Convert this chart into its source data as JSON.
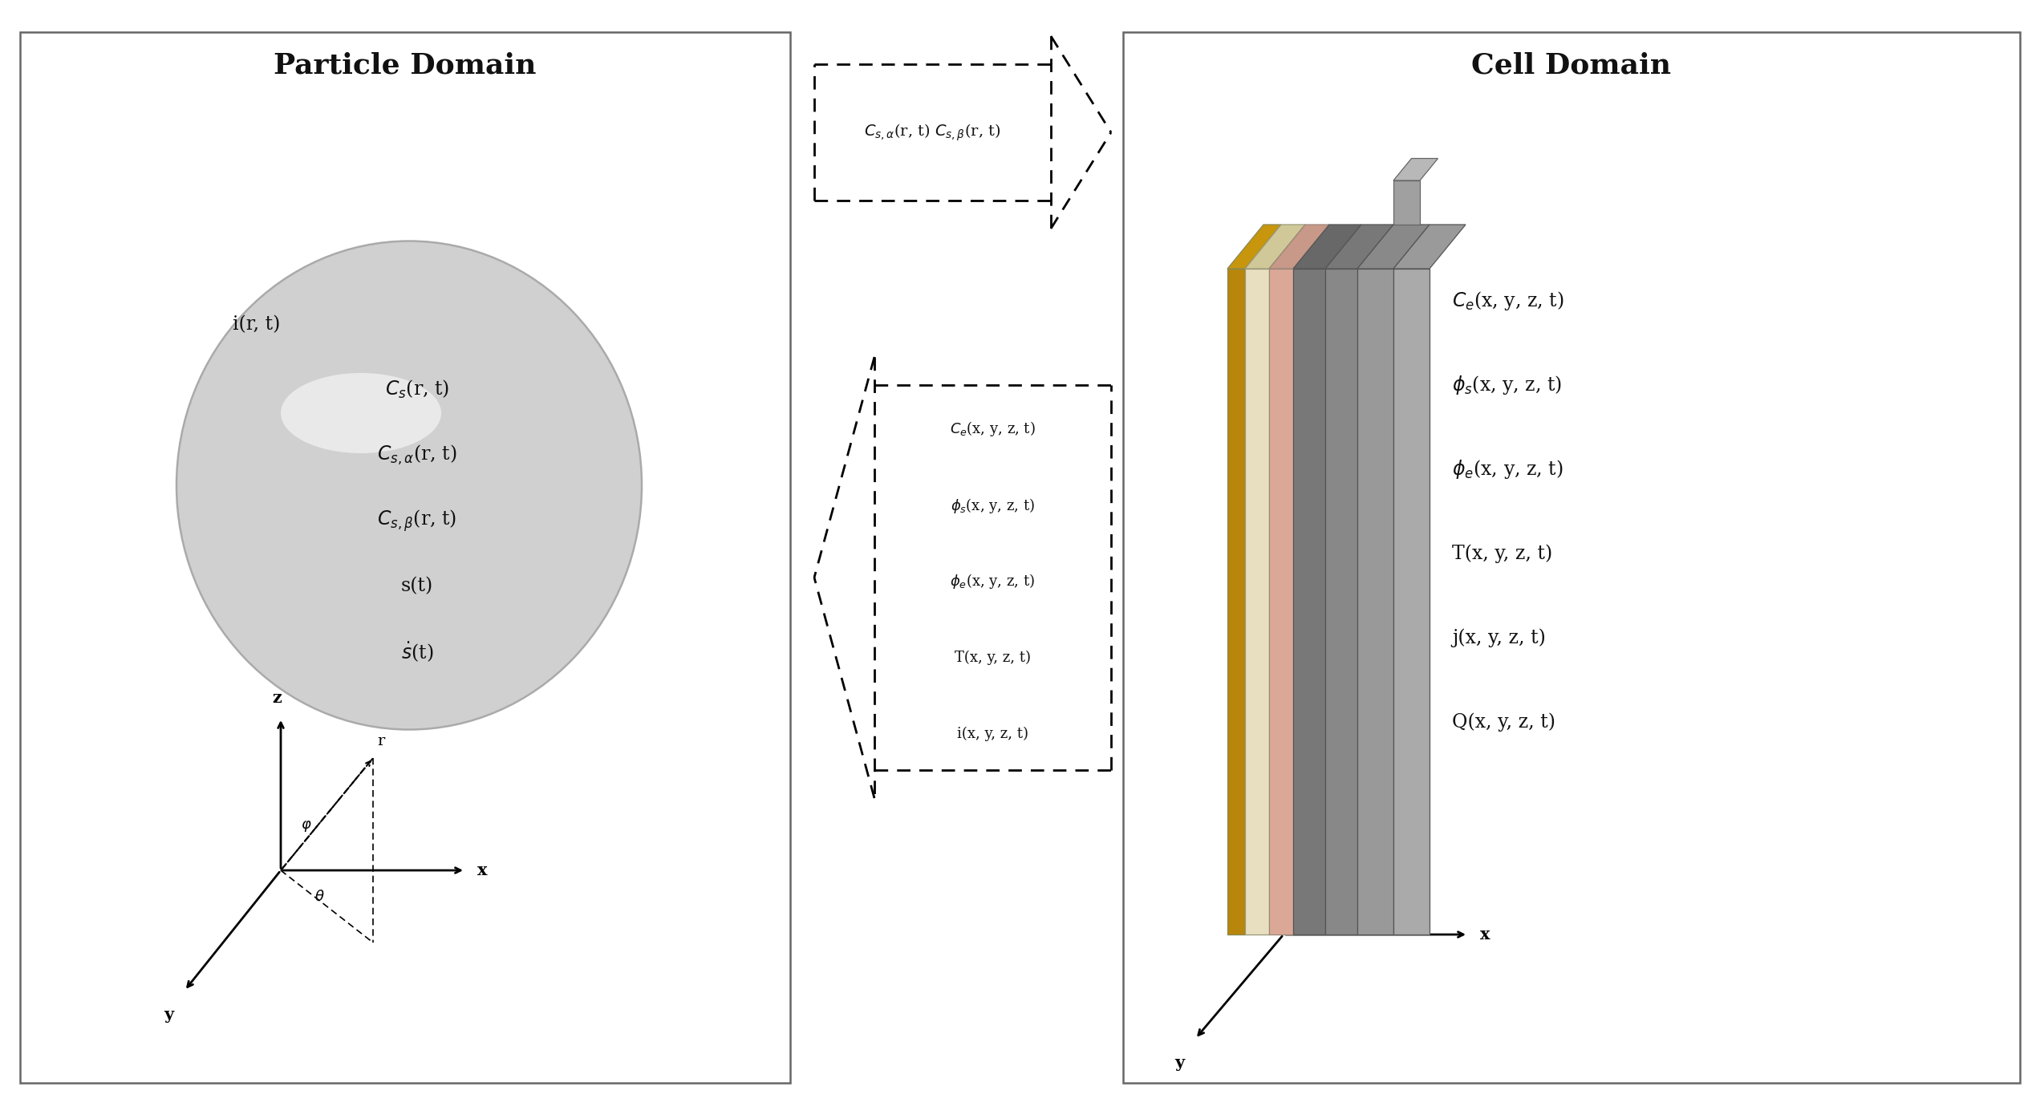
{
  "bg_color": "#ffffff",
  "box_edge_color": "#666666",
  "title_fontsize": 26,
  "label_fontsize": 17,
  "small_fontsize": 15,
  "particle_domain_title": "Particle Domain",
  "cell_domain_title": "Cell Domain",
  "particle_vars": [
    "$C_s$(r, t)",
    "$C_{s,\\alpha}$(r, t)",
    "$C_{s,\\beta}$(r, t)",
    "s(t)",
    "$\\dot{s}$(t)"
  ],
  "particle_label": "i(r, t)",
  "cell_vars": [
    "$C_e$(x, y, z, t)",
    "$\\phi_s$(x, y, z, t)",
    "$\\phi_e$(x, y, z, t)",
    "T(x, y, z, t)",
    "j(x, y, z, t)",
    "Q(x, y, z, t)"
  ],
  "arrow_top_label": "$C_{s,\\alpha}$(r, t) $C_{s,\\beta}$(r, t)",
  "arrow_bottom_vars": [
    "$C_e$(x, y, z, t)",
    "$\\phi_s$(x, y, z, t)",
    "$\\phi_e$(x, y, z, t)",
    "T(x, y, z, t)",
    "i(x, y, z, t)"
  ],
  "layer_colors": [
    "#b8860b",
    "#d4c89a",
    "#e8c0b0",
    "#cc8888",
    "#808080",
    "#909090",
    "#a8a8a8"
  ],
  "layer_top_colors": [
    "#c8960b",
    "#c0b480",
    "#d8b0a0",
    "#b87878",
    "#707070",
    "#888888",
    "#b8b8b8"
  ],
  "axis_color": "#111111",
  "sphere_grad_colors": [
    "#f0f0f0",
    "#c8c8c8"
  ],
  "sphere_edge_color": "#aaaaaa"
}
